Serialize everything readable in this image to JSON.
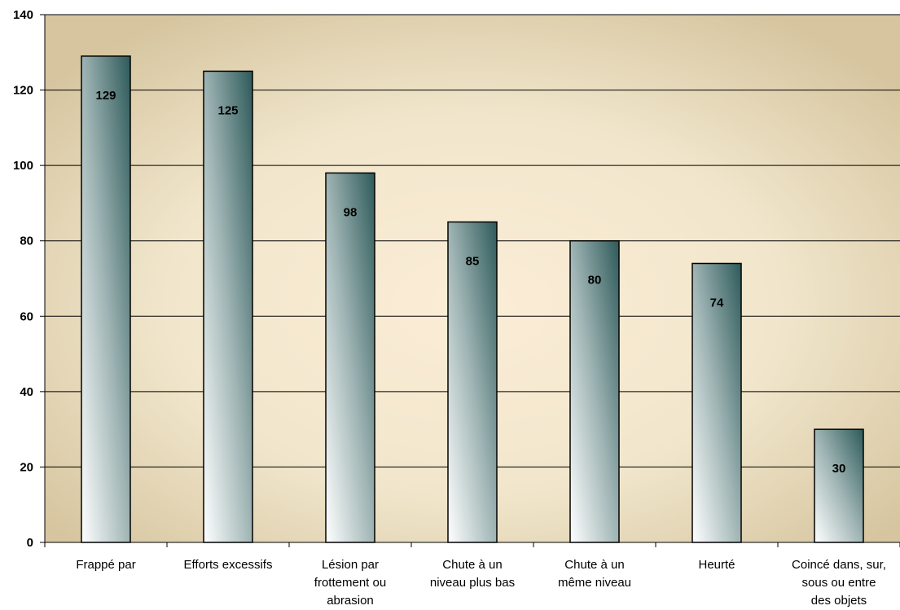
{
  "chart_data": {
    "type": "bar",
    "title": "",
    "xlabel": "",
    "ylabel": "",
    "ylim": [
      0,
      140
    ],
    "yticks": [
      0,
      20,
      40,
      60,
      80,
      100,
      120,
      140
    ],
    "grid": true,
    "legend": "none",
    "categories": [
      [
        "Frappé par"
      ],
      [
        "Efforts excessifs"
      ],
      [
        "Lésion par",
        "frottement ou",
        "abrasion"
      ],
      [
        "Chute à un",
        "niveau plus bas"
      ],
      [
        "Chute à un",
        "même niveau"
      ],
      [
        "Heurté"
      ],
      [
        "Coincé dans, sur,",
        "sous ou entre",
        "des objets"
      ]
    ],
    "values": [
      129,
      125,
      98,
      85,
      80,
      74,
      30
    ],
    "colors": {
      "bar_light": "#ffffff",
      "bar_dark": "#2e5a5a",
      "plot_center": "#fbecd6",
      "plot_edge": "#d9c9a6",
      "grid": "#000000"
    }
  }
}
